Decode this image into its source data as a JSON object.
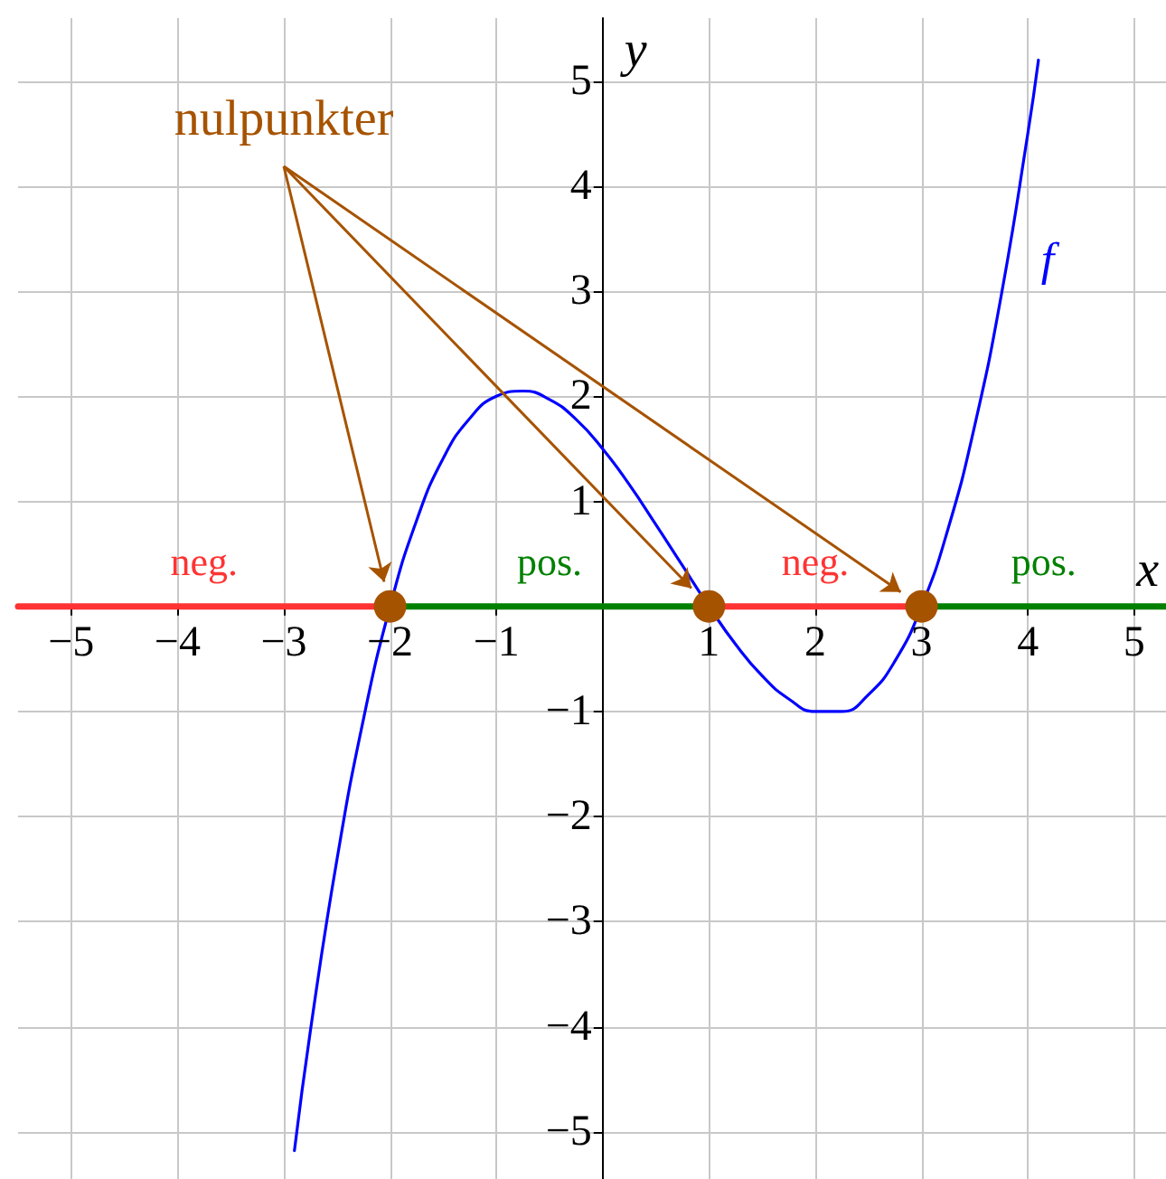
{
  "chart_data": {
    "type": "line",
    "xlabel": "x",
    "ylabel": "y",
    "xlim": [
      -5.5,
      5.3
    ],
    "ylim": [
      -5.45,
      5.6
    ],
    "xticks": [
      -5,
      -4,
      -3,
      -2,
      -1,
      1,
      2,
      3,
      4,
      5
    ],
    "yticks": [
      -5,
      -4,
      -3,
      -2,
      -1,
      1,
      2,
      3,
      4,
      5
    ],
    "grid": true,
    "legend": false,
    "line_style": "solid",
    "series": [
      {
        "name": "f",
        "color": "#0000ff",
        "x": [
          -2.9,
          -2.75,
          -2.5,
          -2.25,
          -2,
          -1.75,
          -1.5,
          -1.25,
          -1,
          -0.75,
          -0.5,
          -0.25,
          0,
          0.25,
          0.5,
          0.75,
          1,
          1.25,
          1.5,
          1.75,
          2,
          2.25,
          2.5,
          2.75,
          3,
          3.25,
          3.5,
          3.75,
          4,
          4.1
        ],
        "values": [
          -5.18,
          -4.04,
          -2.41,
          -1.07,
          0,
          0.82,
          1.41,
          1.79,
          2.0,
          2.05,
          1.97,
          1.78,
          1.5,
          1.16,
          0.78,
          0.39,
          0,
          -0.36,
          -0.66,
          -0.88,
          -1.0,
          -1.0,
          -0.84,
          -0.52,
          0,
          0.74,
          1.72,
          2.96,
          4.5,
          5.2
        ]
      },
      {
        "color": "#ff3333",
        "x": [
          -5.5,
          -2
        ],
        "values": [
          0,
          0
        ]
      },
      {
        "color": "#008000",
        "x": [
          -2,
          1
        ],
        "values": [
          0,
          0
        ]
      },
      {
        "color": "#ff3333",
        "x": [
          1,
          3
        ],
        "values": [
          0,
          0
        ]
      },
      {
        "color": "#008000",
        "x": [
          3,
          5.3
        ],
        "values": [
          0,
          0
        ]
      },
      {
        "type": "scatter",
        "marker": "circle",
        "color": "#a65300",
        "x": [
          -2,
          1,
          3
        ],
        "values": [
          0,
          0,
          0
        ]
      }
    ],
    "annotations": [
      "nulpunkter",
      "neg.",
      "pos.",
      "neg.",
      "pos."
    ]
  }
}
